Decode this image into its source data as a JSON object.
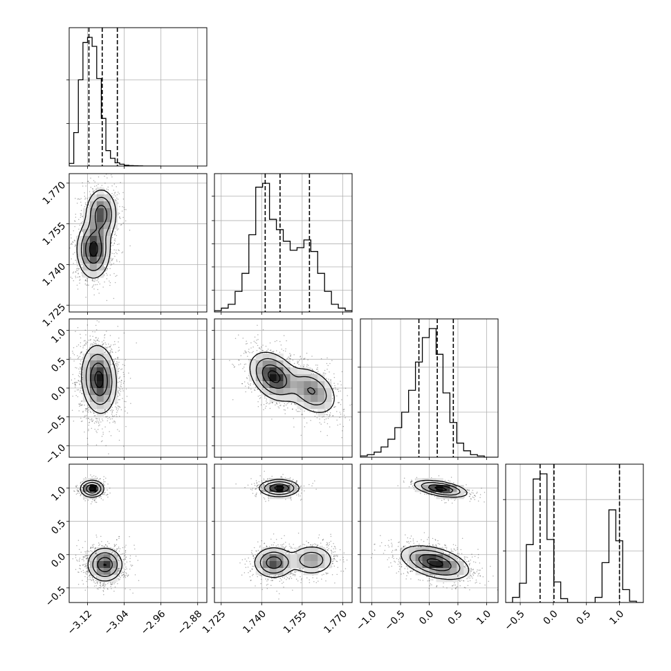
{
  "figure": {
    "type": "corner-plot",
    "parameter_count": 4
  },
  "colors": {
    "background": "#ffffff",
    "ink": "#000000",
    "grid": "#b0b0b0",
    "scatter": "#000000",
    "density_light": "#f0f0f0",
    "density_dark": "#1a1a1a"
  },
  "chart_data": {
    "type": "corner",
    "grid": true,
    "parameters": [
      {
        "range": [
          -3.16,
          -2.86
        ],
        "ticks": [
          -3.12,
          -3.04,
          -2.96,
          -2.88
        ],
        "tick_labels": [
          "−3.12",
          "−3.04",
          "−2.96",
          "−2.88"
        ],
        "quantiles": [
          -3.117,
          -3.088,
          -3.055
        ],
        "hist": {
          "edges_start": -3.16,
          "bin_width": 0.01,
          "counts": [
            0.02,
            0.26,
            0.67,
            0.96,
            1.0,
            0.93,
            0.68,
            0.37,
            0.12,
            0.06,
            0.025,
            0.014,
            0.006,
            0.003,
            0.002,
            0.001,
            0.0,
            0.0,
            0.0,
            0.0
          ]
        },
        "marginal_scale_ticks": [
          0.33,
          0.67
        ]
      },
      {
        "range": [
          1.7225,
          1.7735
        ],
        "ticks": [
          1.725,
          1.74,
          1.755,
          1.77
        ],
        "tick_labels": [
          "1.725",
          "1.740",
          "1.755",
          "1.770"
        ],
        "quantiles": [
          1.7413,
          1.7468,
          1.7577
        ],
        "hist": {
          "edges_start": 1.7225,
          "bin_width": 0.00255,
          "counts": [
            0.01,
            0.03,
            0.06,
            0.16,
            0.3,
            0.6,
            0.97,
            1.0,
            0.72,
            0.64,
            0.55,
            0.48,
            0.5,
            0.56,
            0.47,
            0.3,
            0.16,
            0.06,
            0.03,
            0.01
          ]
        },
        "marginal_scale_ticks": [
          0.17,
          0.35,
          0.53,
          0.71,
          0.9
        ]
      },
      {
        "range": [
          -1.2,
          1.2
        ],
        "ticks": [
          -1.0,
          -0.5,
          0.0,
          0.5,
          1.0
        ],
        "tick_labels": [
          "−1.0",
          "−0.5",
          "0.0",
          "0.5",
          "1.0"
        ],
        "quantiles": [
          -0.18,
          0.14,
          0.42
        ],
        "hist": {
          "edges_start": -1.2,
          "bin_width": 0.12,
          "counts": [
            0.01,
            0.02,
            0.04,
            0.08,
            0.14,
            0.23,
            0.35,
            0.52,
            0.74,
            0.93,
            1.0,
            0.8,
            0.5,
            0.27,
            0.11,
            0.05,
            0.02,
            0.01,
            0.0,
            0.0
          ]
        },
        "marginal_scale_ticks": [
          0.35,
          0.7
        ]
      },
      {
        "range": [
          -0.72,
          1.36
        ],
        "ticks": [
          -0.5,
          0.0,
          0.5,
          1.0
        ],
        "tick_labels": [
          "−0.5",
          "0.0",
          "0.5",
          "1.0"
        ],
        "quantiles": [
          -0.2,
          0.01,
          1.0
        ],
        "hist": {
          "edges_start": -0.72,
          "bin_width": 0.104,
          "counts": [
            0.0,
            0.04,
            0.15,
            0.45,
            0.96,
            1.0,
            0.49,
            0.16,
            0.03,
            0.0,
            0.0,
            0.0,
            0.0,
            0.04,
            0.31,
            0.72,
            0.48,
            0.1,
            0.01,
            0.0
          ]
        },
        "marginal_scale_ticks": [
          0.4,
          0.8
        ]
      }
    ],
    "pairs": [
      {
        "x_param": 0,
        "y_param": 1,
        "modes": [
          {
            "cx": -3.107,
            "cy": 1.7455,
            "sx": 0.017,
            "sy": 0.005,
            "rho": 0.0,
            "w": 0.6
          },
          {
            "cx": -3.09,
            "cy": 1.7585,
            "sx": 0.016,
            "sy": 0.0045,
            "rho": 0.0,
            "w": 0.4
          }
        ]
      },
      {
        "x_param": 0,
        "y_param": 2,
        "modes": [
          {
            "cx": -3.095,
            "cy": 0.15,
            "sx": 0.018,
            "sy": 0.28,
            "rho": -0.1,
            "w": 1.0
          }
        ]
      },
      {
        "x_param": 1,
        "y_param": 2,
        "modes": [
          {
            "cx": 1.7445,
            "cy": 0.2,
            "sx": 0.0042,
            "sy": 0.2,
            "rho": -0.35,
            "w": 0.6
          },
          {
            "cx": 1.7585,
            "cy": -0.05,
            "sx": 0.0045,
            "sy": 0.2,
            "rho": -0.35,
            "w": 0.4
          }
        ]
      },
      {
        "x_param": 0,
        "y_param": 3,
        "modes": [
          {
            "cx": -3.11,
            "cy": 0.99,
            "sx": 0.012,
            "sy": 0.06,
            "rho": 0.0,
            "w": 0.28
          },
          {
            "cx": -3.082,
            "cy": -0.15,
            "sx": 0.018,
            "sy": 0.12,
            "rho": 0.0,
            "w": 0.72
          }
        ]
      },
      {
        "x_param": 1,
        "y_param": 3,
        "modes": [
          {
            "cx": 1.7465,
            "cy": 1.0,
            "sx": 0.0035,
            "sy": 0.06,
            "rho": 0.0,
            "w": 0.28
          },
          {
            "cx": 1.7445,
            "cy": -0.12,
            "sx": 0.0035,
            "sy": 0.11,
            "rho": 0.0,
            "w": 0.42
          },
          {
            "cx": 1.7585,
            "cy": -0.08,
            "sx": 0.004,
            "sy": 0.11,
            "rho": 0.0,
            "w": 0.3
          }
        ]
      },
      {
        "x_param": 2,
        "y_param": 3,
        "modes": [
          {
            "cx": 0.2,
            "cy": 0.99,
            "sx": 0.22,
            "sy": 0.06,
            "rho": -0.5,
            "w": 0.28
          },
          {
            "cx": 0.1,
            "cy": -0.12,
            "sx": 0.28,
            "sy": 0.12,
            "rho": -0.45,
            "w": 0.72
          }
        ]
      }
    ]
  }
}
